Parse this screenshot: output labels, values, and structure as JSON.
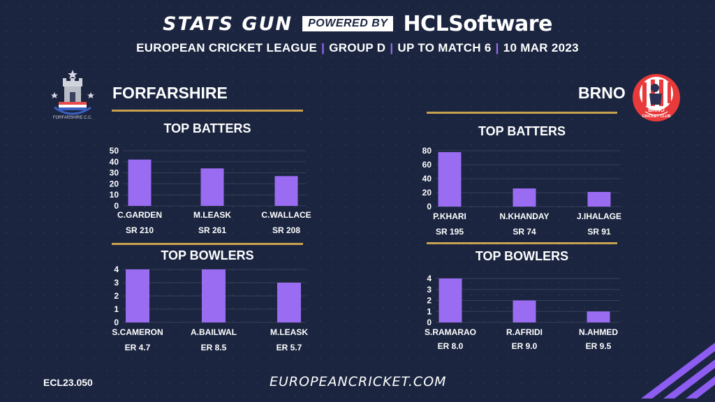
{
  "header": {
    "brand": "STATS GUN",
    "powered": "POWERED BY",
    "sponsor_prefix": "HCL",
    "sponsor_suffix": "Software",
    "league": "EUROPEAN CRICKET LEAGUE",
    "group": "GROUP  D",
    "scope": "UP TO MATCH 6",
    "date": "10 MAR 2023"
  },
  "left": {
    "team": "FORFARSHIRE",
    "logo_text": "FORFARSHIRE C.C.",
    "batters_title": "TOP BATTERS",
    "bowlers_title": "TOP BOWLERS"
  },
  "right": {
    "team": "BRNO",
    "logo_text_1": "BRNO",
    "logo_text_2": "CRICKET CLUB",
    "batters_title": "TOP BATTERS",
    "bowlers_title": "TOP BOWLERS"
  },
  "footer": {
    "code": "ECL23.050",
    "site": "EUROPEANCRICKET.COM"
  },
  "colors": {
    "bar": "#9a6cf2",
    "background": "#1b2540",
    "accent_line": "#c8a24f"
  },
  "chart_data": [
    {
      "type": "bar",
      "title": "TOP BATTERS",
      "categories": [
        "C.GARDEN",
        "M.LEASK",
        "C.WALLACE"
      ],
      "values": [
        42,
        34,
        27
      ],
      "metrics": [
        "SR 210",
        "SR 261",
        "SR 208"
      ],
      "yticks": [
        0,
        10,
        20,
        30,
        40,
        50
      ],
      "ylim": [
        0,
        50
      ],
      "grid": true
    },
    {
      "type": "bar",
      "title": "TOP BOWLERS",
      "categories": [
        "S.CAMERON",
        "A.BAILWAL",
        "M.LEASK"
      ],
      "values": [
        4,
        4,
        3
      ],
      "metrics": [
        "ER 4.7",
        "ER 8.5",
        "ER 5.7"
      ],
      "yticks": [
        0,
        1,
        2,
        3,
        4
      ],
      "ylim": [
        0,
        4
      ],
      "grid": true
    },
    {
      "type": "bar",
      "title": "TOP BATTERS",
      "categories": [
        "P.KHARI",
        "N.KHANDAY",
        "J.IHALAGE"
      ],
      "values": [
        78,
        26,
        21
      ],
      "metrics": [
        "SR 195",
        "SR 74",
        "SR 91"
      ],
      "yticks": [
        0,
        20,
        40,
        60,
        80
      ],
      "ylim": [
        0,
        80
      ],
      "grid": true
    },
    {
      "type": "bar",
      "title": "TOP BOWLERS",
      "categories": [
        "S.RAMARAO",
        "R.AFRIDI",
        "N.AHMED"
      ],
      "values": [
        4,
        2,
        1
      ],
      "metrics": [
        "ER 8.0",
        "ER 9.0",
        "ER 9.5"
      ],
      "yticks": [
        0,
        1,
        2,
        3,
        4
      ],
      "ylim": [
        0,
        4
      ],
      "grid": true
    }
  ]
}
